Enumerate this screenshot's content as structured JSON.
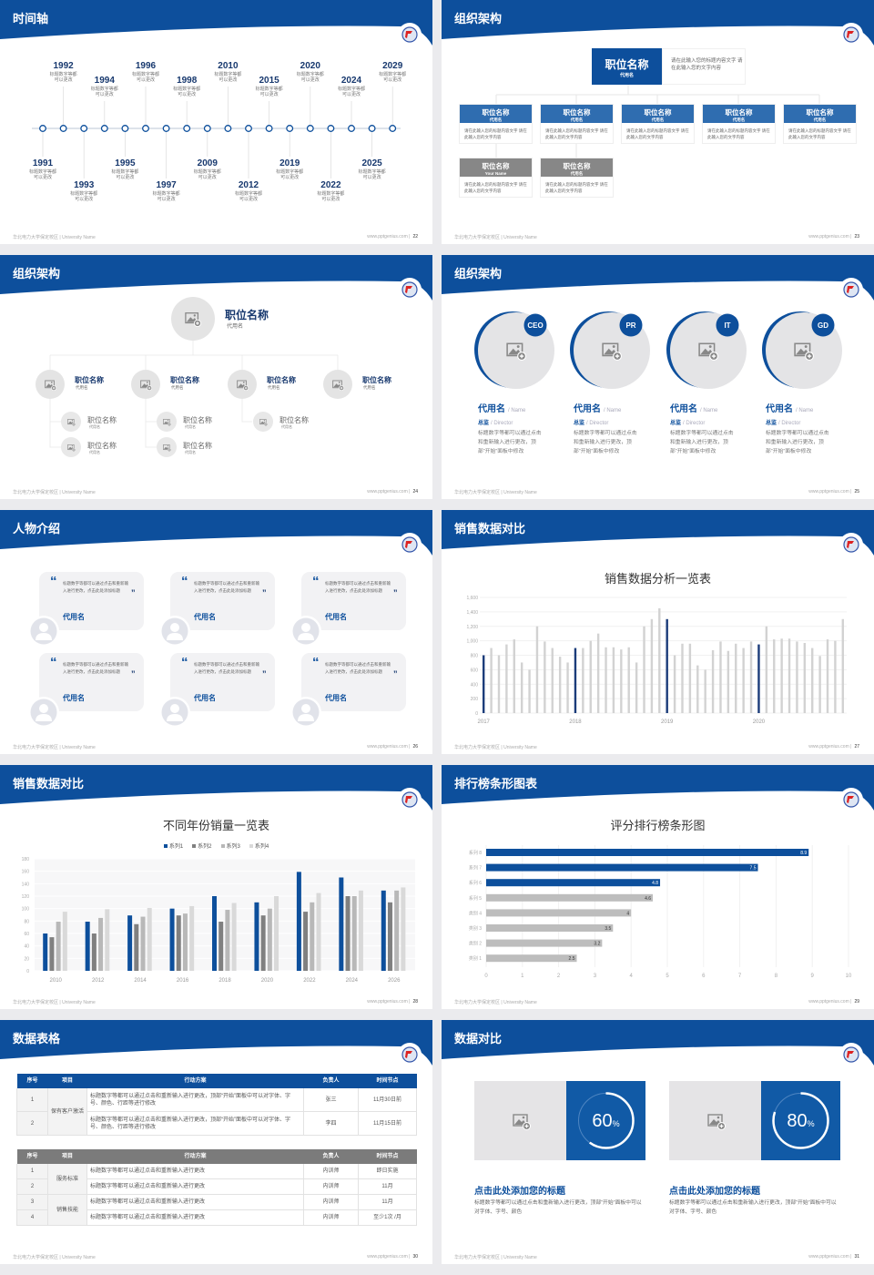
{
  "footer": {
    "school": "华北电力大学保定校区 | University Name",
    "url": "www.pptgenius.com |"
  },
  "colors": {
    "primary": "#0d4f9c",
    "dark": "#17386e",
    "gray": "#8a8a8a",
    "light": "#d3d3d3",
    "card": "#f2f2f4"
  },
  "slides": [
    {
      "title": "时间轴",
      "page": "22",
      "events": [
        {
          "year": "1991",
          "text": "标题数字等都可以更改"
        },
        {
          "year": "1992",
          "text": "标题数字等都可以更改"
        },
        {
          "year": "1993",
          "text": "标题数字等都可以更改"
        },
        {
          "year": "1994",
          "text": "标题数字等都可以更改"
        },
        {
          "year": "1995",
          "text": "标题数字等都可以更改"
        },
        {
          "year": "1996",
          "text": "标题数字等都可以更改"
        },
        {
          "year": "1997",
          "text": "标题数字等都可以更改"
        },
        {
          "year": "1998",
          "text": "标题数字等都可以更改"
        },
        {
          "year": "2009",
          "text": "标题数字等都可以更改"
        },
        {
          "year": "2010",
          "text": "标题数字等都可以更改"
        },
        {
          "year": "2012",
          "text": "标题数字等都可以更改"
        },
        {
          "year": "2015",
          "text": "标题数字等都可以更改"
        },
        {
          "year": "2019",
          "text": "标题数字等都可以更改"
        },
        {
          "year": "2020",
          "text": "标题数字等都可以更改"
        },
        {
          "year": "2022",
          "text": "标题数字等都可以更改"
        },
        {
          "year": "2024",
          "text": "标题数字等都可以更改"
        },
        {
          "year": "2025",
          "text": "标题数字等都可以更改"
        },
        {
          "year": "2029",
          "text": "标题数字等都可以更改"
        }
      ]
    },
    {
      "title": "组织架构",
      "page": "23",
      "top": {
        "title": "职位名称",
        "sub": "代用名",
        "desc": "请在此输入您的标题内容文字 请在此输入您的文字内容"
      },
      "boxes": [
        {
          "title": "职位名称",
          "sub": "代用名",
          "desc": "请在此输入您的标题内容文字 请在此输入您的文字内容",
          "tone": "blue"
        },
        {
          "title": "职位名称",
          "sub": "代用名",
          "desc": "请在此输入您的标题内容文字 请在此输入您的文字内容",
          "tone": "blue"
        },
        {
          "title": "职位名称",
          "sub": "代用名",
          "desc": "请在此输入您的标题内容文字 请在此输入您的文字内容",
          "tone": "blue"
        },
        {
          "title": "职位名称",
          "sub": "代用名",
          "desc": "请在此输入您的标题内容文字 请在此输入您的文字内容",
          "tone": "blue"
        },
        {
          "title": "职位名称",
          "sub": "代用名",
          "desc": "请在此输入您的标题内容文字 请在此输入您的文字内容",
          "tone": "blue"
        },
        {
          "title": "职位名称",
          "sub": "Your Name",
          "desc": "请在此输入您的标题内容文字 请在此输入您的文字内容",
          "tone": "gray"
        },
        {
          "title": "职位名称",
          "sub": "代用名",
          "desc": "请在此输入您的标题内容文字 请在此输入您的文字内容",
          "tone": "gray"
        }
      ]
    },
    {
      "title": "组织架构",
      "page": "24",
      "top": {
        "title": "职位名称",
        "sub": "代用名"
      },
      "groups": [
        {
          "title": "职位名称",
          "sub": "代用名",
          "children": [
            {
              "title": "职位名称",
              "sub": "代用名"
            },
            {
              "title": "职位名称",
              "sub": "代用名"
            }
          ]
        },
        {
          "title": "职位名称",
          "sub": "代用名",
          "children": [
            {
              "title": "职位名称",
              "sub": "代用名"
            },
            {
              "title": "职位名称",
              "sub": "代用名"
            }
          ]
        },
        {
          "title": "职位名称",
          "sub": "代用名",
          "children": [
            {
              "title": "职位名称",
              "sub": "代用名"
            }
          ]
        },
        {
          "title": "职位名称",
          "sub": "代用名",
          "children": []
        }
      ]
    },
    {
      "title": "组织架构",
      "page": "25",
      "people": [
        {
          "badge": "CEO",
          "name": "代用名",
          "name_en": "/ Name",
          "role": "总监",
          "role_en": "/  Director",
          "desc": "标题数字等都可以通过点击和重新输入进行更改，顶部“开始”面板中修改"
        },
        {
          "badge": "PR",
          "name": "代用名",
          "name_en": "/ Name",
          "role": "总监",
          "role_en": "/  Director",
          "desc": "标题数字等都可以通过点击和重新输入进行更改，顶部“开始”面板中修改"
        },
        {
          "badge": "IT",
          "name": "代用名",
          "name_en": "/ Name",
          "role": "总监",
          "role_en": "/  Director",
          "desc": "标题数字等都可以通过点击和重新输入进行更改，顶部“开始”面板中修改"
        },
        {
          "badge": "GD",
          "name": "代用名",
          "name_en": "/ Name",
          "role": "总监",
          "role_en": "/  Director",
          "desc": "标题数字等都可以通过点击和重新输入进行更改，顶部“开始”面板中修改"
        }
      ]
    },
    {
      "title": "人物介绍",
      "page": "26",
      "quotes": [
        {
          "text": "标题数字等都可以通过点击和重新输入进行更改，点击此处添加标题",
          "name": "代用名"
        },
        {
          "text": "标题数字等都可以通过点击和重新输入进行更改，点击此处添加标题",
          "name": "代用名"
        },
        {
          "text": "标题数字等都可以通过点击和重新输入进行更改，点击此处添加标题",
          "name": "代用名"
        },
        {
          "text": "标题数字等都可以通过点击和重新输入进行更改，点击此处添加标题",
          "name": "代用名"
        },
        {
          "text": "标题数字等都可以通过点击和重新输入进行更改，点击此处添加标题",
          "name": "代用名"
        },
        {
          "text": "标题数字等都可以通过点击和重新输入进行更改，点击此处添加标题",
          "name": "代用名"
        }
      ]
    },
    {
      "title": "销售数据对比",
      "page": "27",
      "chart_data": {
        "type": "bar",
        "title": "销售数据分析一览表",
        "ylim": [
          0,
          1600
        ],
        "yticks": [
          "0",
          "200",
          "400",
          "600",
          "800",
          "1,000",
          "1,200",
          "1,400",
          "1,600"
        ],
        "xlabels": [
          "2017",
          "2018",
          "2019",
          "2020"
        ],
        "highlight": "first month of each year",
        "grid": true,
        "values": [
          800,
          900,
          800,
          950,
          1020,
          700,
          600,
          1200,
          990,
          900,
          780,
          700,
          900,
          900,
          1000,
          1100,
          910,
          910,
          880,
          910,
          700,
          1200,
          1300,
          1450,
          1300,
          800,
          960,
          960,
          660,
          600,
          870,
          990,
          860,
          960,
          900,
          990,
          950,
          1200,
          1020,
          1030,
          1030,
          990,
          970,
          900,
          790,
          1020,
          1000,
          1300
        ]
      }
    },
    {
      "title": "销售数据对比",
      "page": "28",
      "chart_data": {
        "type": "bar",
        "title": "不同年份销量一览表",
        "ylim": [
          0,
          180
        ],
        "yticks": [
          "0",
          "20",
          "40",
          "60",
          "80",
          "100",
          "120",
          "140",
          "160",
          "180"
        ],
        "categories": [
          "2010",
          "2012",
          "2014",
          "2016",
          "2018",
          "2020",
          "2022",
          "2024",
          "2026"
        ],
        "legend": "top",
        "grid": true,
        "series": [
          {
            "name": "系列1",
            "color": "#0d4f9c",
            "values": [
              60,
              79,
              89,
              100,
              120,
              110,
              159,
              150,
              129
            ]
          },
          {
            "name": "系列2",
            "color": "#808080",
            "values": [
              54,
              60,
              75,
              89,
              79,
              89,
              95,
              120,
              110
            ]
          },
          {
            "name": "系列3",
            "color": "#b8b8b8",
            "values": [
              79,
              85,
              87,
              92,
              98,
              100,
              110,
              120,
              129
            ]
          },
          {
            "name": "系列4",
            "color": "#d9d9d9",
            "values": [
              95,
              99,
              101,
              104,
              109,
              120,
              125,
              129,
              134
            ]
          }
        ]
      }
    },
    {
      "title": "排行榜条形图表",
      "page": "29",
      "chart_data": {
        "type": "bar",
        "orientation": "horizontal",
        "title": "评分排行榜条形图",
        "xlim": [
          0,
          10
        ],
        "xticks": [
          "0",
          "1",
          "2",
          "3",
          "4",
          "5",
          "6",
          "7",
          "8",
          "9",
          "10"
        ],
        "grid": true,
        "categories": [
          "系列 8",
          "系列 7",
          "系列 6",
          "系列 5",
          "类别 4",
          "类别 3",
          "类别 2",
          "类别 1"
        ],
        "values": [
          8.9,
          7.5,
          4.8,
          4.6,
          4,
          3.5,
          3.2,
          2.5
        ],
        "labels": [
          "8.9",
          "7.5",
          "4.8",
          "4.6",
          "4",
          "3.5",
          "3.2",
          "2.5"
        ],
        "colors": [
          "#0d4f9c",
          "#0d4f9c",
          "#0d4f9c",
          "#bdbdbd",
          "#bdbdbd",
          "#bdbdbd",
          "#bdbdbd",
          "#bdbdbd"
        ]
      }
    },
    {
      "title": "数据表格",
      "page": "30",
      "headers": [
        "序号",
        "项目",
        "行动方案",
        "负责人",
        "时间节点"
      ],
      "table1": {
        "group": "保有客户激活",
        "rows": [
          [
            "1",
            "标题数字等都可以通过点击和重新输入进行更改，顶部“开始”面板中可以对字体、字号、颜色、行距等进行修改",
            "张三",
            "11月30日前"
          ],
          [
            "2",
            "标题数字等都可以通过点击和重新输入进行更改，顶部“开始”面板中可以对字体、字号、颜色、行距等进行修改",
            "李四",
            "11月15日前"
          ]
        ]
      },
      "table2": {
        "groups": [
          "服务标准",
          "销售技能"
        ],
        "rows": [
          [
            "1",
            "标题数字等都可以通过点击和重新输入进行更改",
            "内训师",
            "即日实施"
          ],
          [
            "2",
            "标题数字等都可以通过点击和重新输入进行更改",
            "内训师",
            "11月"
          ],
          [
            "3",
            "标题数字等都可以通过点击和重新输入进行更改",
            "内训师",
            "11月"
          ],
          [
            "4",
            "标题数字等都可以通过点击和重新输入进行更改",
            "内训师",
            "至少1次 /月"
          ]
        ]
      }
    },
    {
      "title": "数据对比",
      "page": "31",
      "items": [
        {
          "value": "60",
          "unit": "%",
          "percent": 60,
          "heading": "点击此处添加您的标题",
          "desc": "标题数字等都可以通过点击和重新输入进行更改，顶部“开始”面板中可以对字体、字号、颜色"
        },
        {
          "value": "80",
          "unit": "%",
          "percent": 80,
          "heading": "点击此处添加您的标题",
          "desc": "标题数字等都可以通过点击和重新输入进行更改，顶部“开始”面板中可以对字体、字号、颜色"
        }
      ]
    }
  ]
}
